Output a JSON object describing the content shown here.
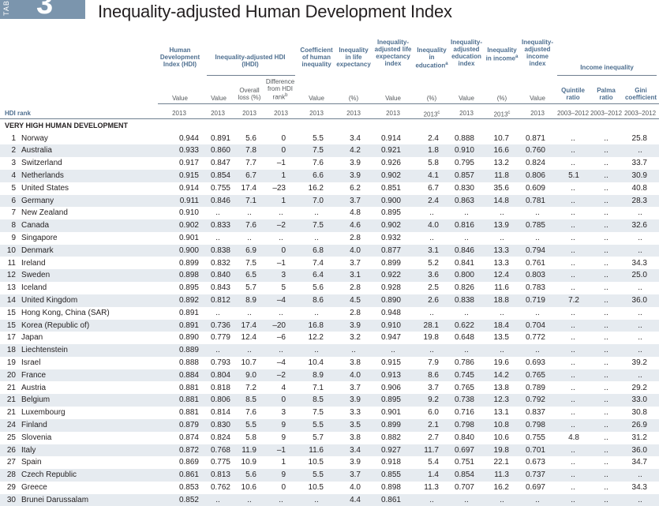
{
  "tab": {
    "side_label": "TABLE",
    "number": "3"
  },
  "title": "Inequality-adjusted Human Development Index",
  "headers": {
    "hdi": "Human Development Index (HDI)",
    "ihdi": "Inequality-adjusted HDI (IHDI)",
    "ihdi_diff": "Difference from HDI rank",
    "ihdi_diff_note": "b",
    "coef": "Coefficient of human inequality",
    "ineq_life": "Inequality in life expectancy",
    "adj_life": "Inequality-adjusted life expectancy index",
    "ineq_edu": "Inequality in education",
    "ineq_edu_note": "a",
    "adj_edu": "Inequality-adjusted education index",
    "ineq_inc": "Inequality in income",
    "ineq_inc_note": "a",
    "adj_inc": "Inequality-adjusted income index",
    "income_ineq": "Income inequality",
    "quintile": "Quintile ratio",
    "palma": "Palma ratio",
    "gini": "Gini coefficient",
    "overall_loss": "Overall loss (%)",
    "value": "Value",
    "pct": "(%)"
  },
  "years": [
    "2013",
    "2013",
    "2013",
    "2013",
    "2013",
    "2013",
    "2013",
    "2013c",
    "2013",
    "2013c",
    "2013",
    "2003–2012",
    "2003–2012",
    "2003–2012"
  ],
  "hdi_rank_label": "HDI rank",
  "section_label": "VERY HIGH HUMAN DEVELOPMENT",
  "rows": [
    {
      "rank": "1",
      "name": "Norway",
      "v": [
        "0.944",
        "0.891",
        "5.6",
        "0",
        "5.5",
        "3.4",
        "0.914",
        "2.4",
        "0.888",
        "10.7",
        "0.871",
        "..",
        "..",
        "25.8"
      ]
    },
    {
      "rank": "2",
      "name": "Australia",
      "v": [
        "0.933",
        "0.860",
        "7.8",
        "0",
        "7.5",
        "4.2",
        "0.921",
        "1.8",
        "0.910",
        "16.6",
        "0.760",
        "..",
        "..",
        ".."
      ]
    },
    {
      "rank": "3",
      "name": "Switzerland",
      "v": [
        "0.917",
        "0.847",
        "7.7",
        "–1",
        "7.6",
        "3.9",
        "0.926",
        "5.8",
        "0.795",
        "13.2",
        "0.824",
        "..",
        "..",
        "33.7"
      ]
    },
    {
      "rank": "4",
      "name": "Netherlands",
      "v": [
        "0.915",
        "0.854",
        "6.7",
        "1",
        "6.6",
        "3.9",
        "0.902",
        "4.1",
        "0.857",
        "11.8",
        "0.806",
        "5.1",
        "..",
        "30.9"
      ]
    },
    {
      "rank": "5",
      "name": "United States",
      "v": [
        "0.914",
        "0.755",
        "17.4",
        "–23",
        "16.2",
        "6.2",
        "0.851",
        "6.7",
        "0.830",
        "35.6",
        "0.609",
        "..",
        "..",
        "40.8"
      ]
    },
    {
      "rank": "6",
      "name": "Germany",
      "v": [
        "0.911",
        "0.846",
        "7.1",
        "1",
        "7.0",
        "3.7",
        "0.900",
        "2.4",
        "0.863",
        "14.8",
        "0.781",
        "..",
        "..",
        "28.3"
      ]
    },
    {
      "rank": "7",
      "name": "New Zealand",
      "v": [
        "0.910",
        "..",
        "..",
        "..",
        "..",
        "4.8",
        "0.895",
        "..",
        "..",
        "..",
        "..",
        "..",
        "..",
        ".."
      ]
    },
    {
      "rank": "8",
      "name": "Canada",
      "v": [
        "0.902",
        "0.833",
        "7.6",
        "–2",
        "7.5",
        "4.6",
        "0.902",
        "4.0",
        "0.816",
        "13.9",
        "0.785",
        "..",
        "..",
        "32.6"
      ]
    },
    {
      "rank": "9",
      "name": "Singapore",
      "v": [
        "0.901",
        "..",
        "..",
        "..",
        "..",
        "2.8",
        "0.932",
        "..",
        "..",
        "..",
        "..",
        "..",
        "..",
        ".."
      ]
    },
    {
      "rank": "10",
      "name": "Denmark",
      "v": [
        "0.900",
        "0.838",
        "6.9",
        "0",
        "6.8",
        "4.0",
        "0.877",
        "3.1",
        "0.846",
        "13.3",
        "0.794",
        "..",
        "..",
        ".."
      ]
    },
    {
      "rank": "11",
      "name": "Ireland",
      "v": [
        "0.899",
        "0.832",
        "7.5",
        "–1",
        "7.4",
        "3.7",
        "0.899",
        "5.2",
        "0.841",
        "13.3",
        "0.761",
        "..",
        "..",
        "34.3"
      ]
    },
    {
      "rank": "12",
      "name": "Sweden",
      "v": [
        "0.898",
        "0.840",
        "6.5",
        "3",
        "6.4",
        "3.1",
        "0.922",
        "3.6",
        "0.800",
        "12.4",
        "0.803",
        "..",
        "..",
        "25.0"
      ]
    },
    {
      "rank": "13",
      "name": "Iceland",
      "v": [
        "0.895",
        "0.843",
        "5.7",
        "5",
        "5.6",
        "2.8",
        "0.928",
        "2.5",
        "0.826",
        "11.6",
        "0.783",
        "..",
        "..",
        ".."
      ]
    },
    {
      "rank": "14",
      "name": "United Kingdom",
      "v": [
        "0.892",
        "0.812",
        "8.9",
        "–4",
        "8.6",
        "4.5",
        "0.890",
        "2.6",
        "0.838",
        "18.8",
        "0.719",
        "7.2",
        "..",
        "36.0"
      ]
    },
    {
      "rank": "15",
      "name": "Hong Kong, China (SAR)",
      "v": [
        "0.891",
        "..",
        "..",
        "..",
        "..",
        "2.8",
        "0.948",
        "..",
        "..",
        "..",
        "..",
        "..",
        "..",
        ".."
      ]
    },
    {
      "rank": "15",
      "name": "Korea (Republic of)",
      "v": [
        "0.891",
        "0.736",
        "17.4",
        "–20",
        "16.8",
        "3.9",
        "0.910",
        "28.1",
        "0.622",
        "18.4",
        "0.704",
        "..",
        "..",
        ".."
      ]
    },
    {
      "rank": "17",
      "name": "Japan",
      "v": [
        "0.890",
        "0.779",
        "12.4",
        "–6",
        "12.2",
        "3.2",
        "0.947",
        "19.8",
        "0.648",
        "13.5",
        "0.772",
        "..",
        "..",
        ".."
      ]
    },
    {
      "rank": "18",
      "name": "Liechtenstein",
      "v": [
        "0.889",
        "..",
        "..",
        "..",
        "..",
        "..",
        "..",
        "..",
        "..",
        "..",
        "..",
        "..",
        "..",
        ".."
      ]
    },
    {
      "rank": "19",
      "name": "Israel",
      "v": [
        "0.888",
        "0.793",
        "10.7",
        "–4",
        "10.4",
        "3.8",
        "0.915",
        "7.9",
        "0.786",
        "19.6",
        "0.693",
        "..",
        "..",
        "39.2"
      ]
    },
    {
      "rank": "20",
      "name": "France",
      "v": [
        "0.884",
        "0.804",
        "9.0",
        "–2",
        "8.9",
        "4.0",
        "0.913",
        "8.6",
        "0.745",
        "14.2",
        "0.765",
        "..",
        "..",
        ".."
      ]
    },
    {
      "rank": "21",
      "name": "Austria",
      "v": [
        "0.881",
        "0.818",
        "7.2",
        "4",
        "7.1",
        "3.7",
        "0.906",
        "3.7",
        "0.765",
        "13.8",
        "0.789",
        "..",
        "..",
        "29.2"
      ]
    },
    {
      "rank": "21",
      "name": "Belgium",
      "v": [
        "0.881",
        "0.806",
        "8.5",
        "0",
        "8.5",
        "3.9",
        "0.895",
        "9.2",
        "0.738",
        "12.3",
        "0.792",
        "..",
        "..",
        "33.0"
      ]
    },
    {
      "rank": "21",
      "name": "Luxembourg",
      "v": [
        "0.881",
        "0.814",
        "7.6",
        "3",
        "7.5",
        "3.3",
        "0.901",
        "6.0",
        "0.716",
        "13.1",
        "0.837",
        "..",
        "..",
        "30.8"
      ]
    },
    {
      "rank": "24",
      "name": "Finland",
      "v": [
        "0.879",
        "0.830",
        "5.5",
        "9",
        "5.5",
        "3.5",
        "0.899",
        "2.1",
        "0.798",
        "10.8",
        "0.798",
        "..",
        "..",
        "26.9"
      ]
    },
    {
      "rank": "25",
      "name": "Slovenia",
      "v": [
        "0.874",
        "0.824",
        "5.8",
        "9",
        "5.7",
        "3.8",
        "0.882",
        "2.7",
        "0.840",
        "10.6",
        "0.755",
        "4.8",
        "..",
        "31.2"
      ]
    },
    {
      "rank": "26",
      "name": "Italy",
      "v": [
        "0.872",
        "0.768",
        "11.9",
        "–1",
        "11.6",
        "3.4",
        "0.927",
        "11.7",
        "0.697",
        "19.8",
        "0.701",
        "..",
        "..",
        "36.0"
      ]
    },
    {
      "rank": "27",
      "name": "Spain",
      "v": [
        "0.869",
        "0.775",
        "10.9",
        "1",
        "10.5",
        "3.9",
        "0.918",
        "5.4",
        "0.751",
        "22.1",
        "0.673",
        "..",
        "..",
        "34.7"
      ]
    },
    {
      "rank": "28",
      "name": "Czech Republic",
      "v": [
        "0.861",
        "0.813",
        "5.6",
        "9",
        "5.5",
        "3.7",
        "0.855",
        "1.4",
        "0.854",
        "11.3",
        "0.737",
        "..",
        "..",
        ".."
      ]
    },
    {
      "rank": "29",
      "name": "Greece",
      "v": [
        "0.853",
        "0.762",
        "10.6",
        "0",
        "10.5",
        "4.0",
        "0.898",
        "11.3",
        "0.707",
        "16.2",
        "0.697",
        "..",
        "..",
        "34.3"
      ]
    },
    {
      "rank": "30",
      "name": "Brunei Darussalam",
      "v": [
        "0.852",
        "..",
        "..",
        "..",
        "..",
        "4.4",
        "0.861",
        "..",
        "..",
        "..",
        "..",
        "..",
        "..",
        ".."
      ]
    }
  ]
}
